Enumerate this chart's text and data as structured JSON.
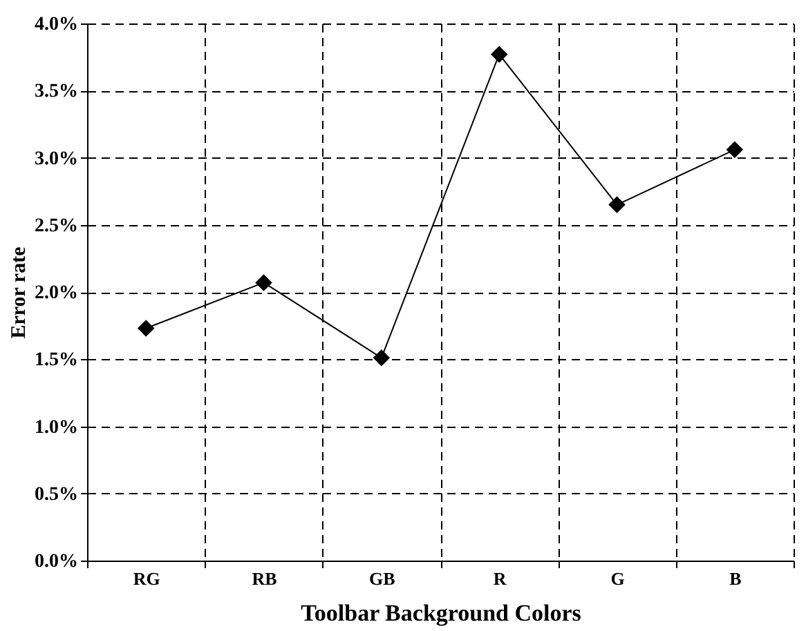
{
  "chart_data": {
    "type": "line",
    "xlabel": "Toolbar Background Colors",
    "ylabel": "Error rate",
    "categories": [
      "RG",
      "RB",
      "GB",
      "R",
      "G",
      "B"
    ],
    "series": [
      {
        "color": "#000000",
        "values": [
          1.73,
          2.07,
          1.51,
          3.77,
          2.65,
          3.06
        ]
      }
    ],
    "ylim": [
      0,
      4
    ],
    "yticks": [
      {
        "value": 0,
        "label": "0.0%"
      },
      {
        "value": 0.5,
        "label": "0.5%"
      },
      {
        "value": 1,
        "label": "1.0%"
      },
      {
        "value": 1.5,
        "label": "1.5%"
      },
      {
        "value": 2,
        "label": "2.0%"
      },
      {
        "value": 2.5,
        "label": "2.5%"
      },
      {
        "value": 3,
        "label": "3.0%"
      },
      {
        "value": 3.5,
        "label": "3.5%"
      },
      {
        "value": 4,
        "label": "4.0%"
      }
    ],
    "grid": true,
    "marker": "diamond",
    "line_style": "solid"
  }
}
